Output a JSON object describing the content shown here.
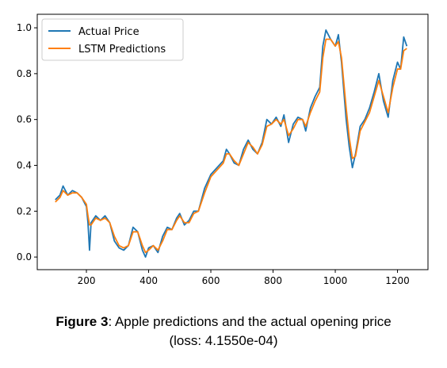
{
  "chart_data": {
    "type": "line",
    "x": [
      100,
      115,
      125,
      140,
      155,
      170,
      185,
      200,
      205,
      210,
      215,
      230,
      245,
      260,
      275,
      290,
      305,
      320,
      335,
      350,
      365,
      380,
      390,
      400,
      415,
      430,
      445,
      460,
      475,
      490,
      500,
      515,
      530,
      545,
      560,
      580,
      600,
      620,
      640,
      650,
      660,
      675,
      690,
      705,
      720,
      735,
      750,
      765,
      780,
      795,
      810,
      825,
      835,
      850,
      865,
      880,
      895,
      905,
      920,
      935,
      950,
      960,
      970,
      985,
      1000,
      1010,
      1020,
      1035,
      1045,
      1055,
      1065,
      1080,
      1095,
      1110,
      1125,
      1140,
      1155,
      1170,
      1185,
      1200,
      1210,
      1220,
      1230
    ],
    "series": [
      {
        "name": "Actual Price",
        "color": "#1f77b4",
        "values": [
          0.25,
          0.27,
          0.31,
          0.27,
          0.29,
          0.28,
          0.26,
          0.22,
          0.15,
          0.03,
          0.15,
          0.18,
          0.16,
          0.18,
          0.15,
          0.07,
          0.04,
          0.03,
          0.05,
          0.13,
          0.11,
          0.03,
          0.0,
          0.04,
          0.05,
          0.02,
          0.09,
          0.13,
          0.12,
          0.17,
          0.19,
          0.14,
          0.16,
          0.2,
          0.2,
          0.3,
          0.36,
          0.39,
          0.42,
          0.47,
          0.45,
          0.41,
          0.4,
          0.47,
          0.51,
          0.47,
          0.45,
          0.5,
          0.6,
          0.58,
          0.61,
          0.57,
          0.62,
          0.5,
          0.58,
          0.61,
          0.6,
          0.55,
          0.65,
          0.7,
          0.74,
          0.92,
          0.99,
          0.95,
          0.92,
          0.97,
          0.85,
          0.6,
          0.48,
          0.39,
          0.45,
          0.57,
          0.6,
          0.65,
          0.72,
          0.8,
          0.68,
          0.61,
          0.77,
          0.85,
          0.82,
          0.96,
          0.92
        ]
      },
      {
        "name": "LSTM Predictions",
        "color": "#ff7f0e",
        "values": [
          0.24,
          0.26,
          0.29,
          0.27,
          0.28,
          0.28,
          0.26,
          0.23,
          0.18,
          0.14,
          0.14,
          0.17,
          0.16,
          0.17,
          0.15,
          0.09,
          0.05,
          0.04,
          0.05,
          0.11,
          0.11,
          0.05,
          0.02,
          0.03,
          0.05,
          0.03,
          0.07,
          0.12,
          0.12,
          0.16,
          0.18,
          0.15,
          0.15,
          0.19,
          0.2,
          0.28,
          0.35,
          0.38,
          0.41,
          0.45,
          0.45,
          0.42,
          0.4,
          0.45,
          0.5,
          0.48,
          0.45,
          0.49,
          0.57,
          0.58,
          0.6,
          0.58,
          0.6,
          0.53,
          0.56,
          0.6,
          0.6,
          0.57,
          0.63,
          0.68,
          0.72,
          0.87,
          0.95,
          0.95,
          0.92,
          0.94,
          0.87,
          0.65,
          0.52,
          0.43,
          0.44,
          0.55,
          0.59,
          0.63,
          0.7,
          0.77,
          0.7,
          0.63,
          0.74,
          0.82,
          0.82,
          0.9,
          0.91
        ]
      }
    ],
    "xlim": [
      42,
      1298
    ],
    "ylim": [
      -0.055,
      1.059
    ],
    "xticks": [
      200,
      400,
      600,
      800,
      1000,
      1200
    ],
    "yticks": [
      {
        "value": 0,
        "label": "0.0"
      },
      0.2,
      0.4,
      0.6,
      0.8,
      {
        "value": 1,
        "label": "1.0"
      }
    ],
    "legend": "upper left",
    "grid": false
  },
  "caption": {
    "label": "Figure 3",
    "text": ": Apple predictions and the actual opening price",
    "line2": "(loss: 4.1550e-04)"
  }
}
